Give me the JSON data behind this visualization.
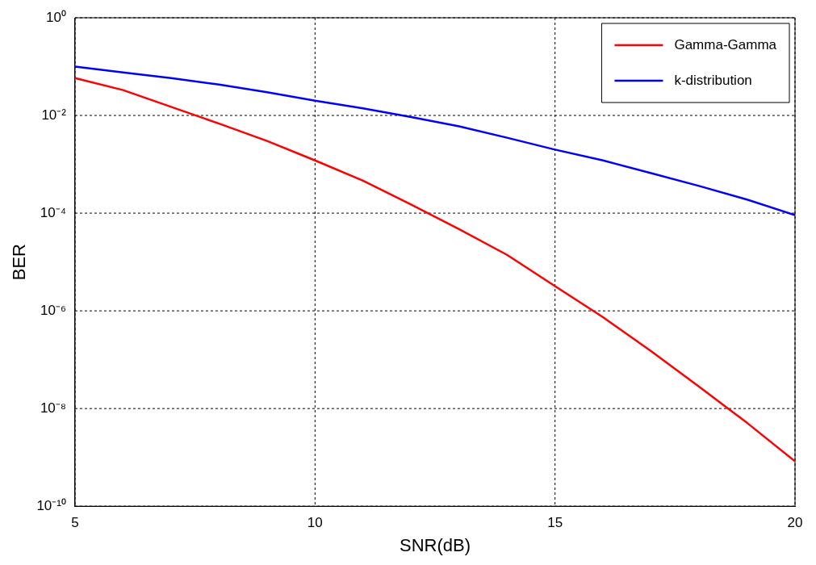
{
  "chart_data": {
    "type": "line",
    "xlabel": "SNR(dB)",
    "ylabel": "BER",
    "log": "y",
    "grid": true,
    "legend": "top right",
    "marker": "none",
    "line_style": "solid",
    "x": [
      5,
      6,
      7,
      8,
      9,
      10,
      11,
      12,
      13,
      14,
      15,
      16,
      17,
      18,
      19,
      20
    ],
    "xlim": [
      5,
      20
    ],
    "xticks": [
      5,
      10,
      15,
      20
    ],
    "ylim": [
      1e-10,
      1
    ],
    "yticks": [
      {
        "value": 1e-10,
        "label": "10⁻¹⁰"
      },
      {
        "value": 1e-08,
        "label": "10⁻⁸"
      },
      {
        "value": 1e-06,
        "label": "10⁻⁶"
      },
      {
        "value": 0.0001,
        "label": "10⁻⁴"
      },
      {
        "value": 0.01,
        "label": "10⁻²"
      },
      {
        "value": 1,
        "label": "10⁰"
      }
    ],
    "series": [
      {
        "name": "Gamma-Gamma",
        "color": "#ff0000",
        "values": [
          0.058,
          0.033,
          0.015,
          0.0068,
          0.003,
          0.0012,
          0.00046,
          0.00015,
          4.7e-05,
          1.4e-05,
          3.2e-06,
          7.4e-07,
          1.5e-07,
          2.8e-08,
          5.1e-09,
          8.3e-10
        ]
      },
      {
        "name": "k-distribution",
        "color": "#0000ff",
        "values": [
          0.1,
          0.076,
          0.058,
          0.043,
          0.03,
          0.02,
          0.014,
          0.0093,
          0.006,
          0.0035,
          0.002,
          0.0012,
          0.00066,
          0.00036,
          0.00019,
          9.1e-05
        ]
      }
    ]
  }
}
